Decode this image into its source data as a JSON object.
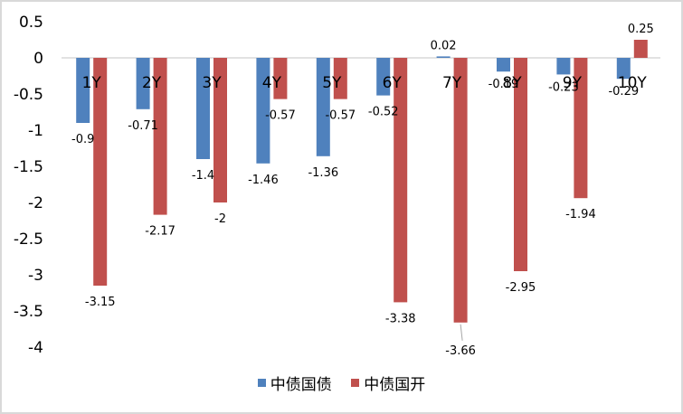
{
  "chart_data": {
    "type": "bar",
    "title": "",
    "xlabel": "",
    "ylabel": "",
    "categories": [
      "1Y",
      "2Y",
      "3Y",
      "4Y",
      "5Y",
      "6Y",
      "7Y",
      "8Y",
      "9Y",
      "10Y"
    ],
    "series": [
      {
        "name": "中债国债",
        "color": "#4f81bd",
        "values": [
          -0.9,
          -0.71,
          -1.4,
          -1.46,
          -1.36,
          -0.52,
          0.02,
          -0.19,
          -0.23,
          -0.29
        ]
      },
      {
        "name": "中债国开",
        "color": "#c0504d",
        "values": [
          -3.15,
          -2.17,
          -2,
          -0.57,
          -0.57,
          -3.38,
          -3.66,
          -2.95,
          -1.94,
          0.25
        ]
      }
    ],
    "ylim": [
      -4,
      0.5
    ],
    "yticks": [
      "0.5",
      "0",
      "-0.5",
      "-1",
      "-1.5",
      "-2",
      "-2.5",
      "-3",
      "-3.5",
      "-4"
    ],
    "grid": false,
    "legend_position": "bottom",
    "data_labels": true
  },
  "legend": {
    "items": [
      {
        "label": "中债国债",
        "color": "#4f81bd"
      },
      {
        "label": "中债国开",
        "color": "#c0504d"
      }
    ]
  }
}
